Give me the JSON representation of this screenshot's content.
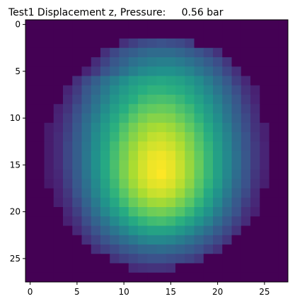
{
  "chart_data": {
    "type": "heatmap",
    "title": "Test1 Displacement z, Pressure:     0.56 bar",
    "colormap": "viridis",
    "rows": 28,
    "cols": 28,
    "xticks": [
      0,
      5,
      10,
      15,
      20,
      25
    ],
    "yticks": [
      0,
      5,
      10,
      15,
      20,
      25
    ],
    "xlim": [
      -0.5,
      27.5
    ],
    "ylim": [
      27.5,
      -0.5
    ],
    "legend": "none",
    "grid": false,
    "values": [
      [
        0.0,
        0.0,
        0.0,
        0.0,
        0.0,
        0.0,
        0.0,
        0.0,
        0.0,
        0.0,
        0.0,
        0.0,
        0.0,
        0.0,
        0.0,
        0.0,
        0.0,
        0.0,
        0.0,
        0.0,
        0.0,
        0.0,
        0.0,
        0.0,
        0.0,
        0.0,
        0.0,
        0.0
      ],
      [
        0.0,
        0.0,
        0.0,
        0.0,
        0.0,
        0.0,
        0.0,
        0.0,
        0.0,
        0.0,
        0.0,
        0.0,
        0.0,
        0.0,
        0.0,
        0.0,
        0.0,
        0.0,
        0.0,
        0.0,
        0.0,
        0.0,
        0.0,
        0.0,
        0.0,
        0.0,
        0.0,
        0.0
      ],
      [
        0.0,
        0.0,
        0.0,
        0.0,
        0.0,
        0.0,
        0.0,
        0.0,
        0.0,
        0.0,
        0.16,
        0.2,
        0.23,
        0.24,
        0.25,
        0.24,
        0.23,
        0.2,
        0.0,
        0.0,
        0.0,
        0.0,
        0.0,
        0.0,
        0.0,
        0.0,
        0.0,
        0.0
      ],
      [
        0.0,
        0.0,
        0.0,
        0.0,
        0.0,
        0.0,
        0.0,
        0.0,
        0.16,
        0.22,
        0.27,
        0.3,
        0.33,
        0.35,
        0.35,
        0.35,
        0.33,
        0.3,
        0.26,
        0.22,
        0.17,
        0.0,
        0.0,
        0.0,
        0.0,
        0.0,
        0.0,
        0.0
      ],
      [
        0.0,
        0.0,
        0.0,
        0.0,
        0.0,
        0.0,
        0.0,
        0.15,
        0.21,
        0.27,
        0.32,
        0.37,
        0.4,
        0.42,
        0.43,
        0.43,
        0.41,
        0.38,
        0.34,
        0.29,
        0.24,
        0.18,
        0.0,
        0.0,
        0.0,
        0.0,
        0.0,
        0.0
      ],
      [
        0.0,
        0.0,
        0.0,
        0.0,
        0.0,
        0.0,
        0.13,
        0.19,
        0.26,
        0.32,
        0.38,
        0.43,
        0.47,
        0.49,
        0.5,
        0.5,
        0.48,
        0.45,
        0.4,
        0.35,
        0.29,
        0.22,
        0.16,
        0.0,
        0.0,
        0.0,
        0.0,
        0.0
      ],
      [
        0.0,
        0.0,
        0.0,
        0.0,
        0.0,
        0.16,
        0.23,
        0.3,
        0.37,
        0.43,
        0.49,
        0.54,
        0.57,
        0.59,
        0.6,
        0.59,
        0.57,
        0.53,
        0.48,
        0.42,
        0.35,
        0.28,
        0.2,
        0.14,
        0.0,
        0.0,
        0.0,
        0.0
      ],
      [
        0.0,
        0.0,
        0.0,
        0.0,
        0.13,
        0.19,
        0.27,
        0.34,
        0.41,
        0.48,
        0.54,
        0.59,
        0.63,
        0.65,
        0.65,
        0.64,
        0.62,
        0.58,
        0.52,
        0.46,
        0.39,
        0.32,
        0.24,
        0.17,
        0.12,
        0.0,
        0.0,
        0.0
      ],
      [
        0.0,
        0.0,
        0.0,
        0.0,
        0.15,
        0.21,
        0.29,
        0.37,
        0.44,
        0.52,
        0.58,
        0.63,
        0.68,
        0.7,
        0.71,
        0.7,
        0.67,
        0.63,
        0.57,
        0.5,
        0.43,
        0.35,
        0.27,
        0.19,
        0.13,
        0.0,
        0.0,
        0.0
      ],
      [
        0.0,
        0.0,
        0.0,
        0.12,
        0.17,
        0.24,
        0.32,
        0.4,
        0.48,
        0.56,
        0.63,
        0.69,
        0.74,
        0.76,
        0.77,
        0.76,
        0.72,
        0.68,
        0.61,
        0.54,
        0.46,
        0.38,
        0.29,
        0.21,
        0.15,
        0.0,
        0.0,
        0.0
      ],
      [
        0.0,
        0.0,
        0.0,
        0.13,
        0.19,
        0.26,
        0.35,
        0.43,
        0.52,
        0.6,
        0.67,
        0.74,
        0.79,
        0.82,
        0.82,
        0.81,
        0.77,
        0.72,
        0.65,
        0.57,
        0.49,
        0.4,
        0.31,
        0.23,
        0.16,
        0.0,
        0.0,
        0.0
      ],
      [
        0.0,
        0.0,
        0.1,
        0.14,
        0.2,
        0.28,
        0.37,
        0.46,
        0.55,
        0.64,
        0.72,
        0.79,
        0.84,
        0.87,
        0.88,
        0.86,
        0.82,
        0.76,
        0.69,
        0.61,
        0.52,
        0.43,
        0.33,
        0.24,
        0.17,
        0.12,
        0.0,
        0.0
      ],
      [
        0.0,
        0.0,
        0.1,
        0.15,
        0.21,
        0.29,
        0.38,
        0.48,
        0.57,
        0.66,
        0.75,
        0.82,
        0.87,
        0.91,
        0.92,
        0.9,
        0.86,
        0.8,
        0.72,
        0.64,
        0.54,
        0.45,
        0.35,
        0.26,
        0.18,
        0.12,
        0.0,
        0.0
      ],
      [
        0.0,
        0.0,
        0.1,
        0.15,
        0.22,
        0.3,
        0.39,
        0.49,
        0.59,
        0.69,
        0.78,
        0.85,
        0.91,
        0.94,
        0.95,
        0.93,
        0.89,
        0.82,
        0.74,
        0.66,
        0.56,
        0.46,
        0.36,
        0.26,
        0.19,
        0.13,
        0.0,
        0.0
      ],
      [
        0.0,
        0.0,
        0.1,
        0.15,
        0.22,
        0.3,
        0.4,
        0.5,
        0.6,
        0.7,
        0.79,
        0.87,
        0.93,
        0.97,
        0.98,
        0.96,
        0.91,
        0.84,
        0.76,
        0.67,
        0.57,
        0.47,
        0.37,
        0.27,
        0.19,
        0.13,
        0.0,
        0.0
      ],
      [
        0.0,
        0.0,
        0.1,
        0.15,
        0.22,
        0.3,
        0.4,
        0.5,
        0.61,
        0.71,
        0.8,
        0.88,
        0.94,
        0.98,
        0.99,
        0.97,
        0.92,
        0.85,
        0.77,
        0.67,
        0.57,
        0.47,
        0.37,
        0.27,
        0.19,
        0.13,
        0.0,
        0.0
      ],
      [
        0.0,
        0.0,
        0.1,
        0.14,
        0.21,
        0.29,
        0.39,
        0.49,
        0.6,
        0.7,
        0.8,
        0.88,
        0.94,
        0.98,
        1.0,
        0.97,
        0.92,
        0.85,
        0.76,
        0.67,
        0.57,
        0.46,
        0.36,
        0.26,
        0.18,
        0.12,
        0.0,
        0.0
      ],
      [
        0.0,
        0.0,
        0.09,
        0.13,
        0.2,
        0.28,
        0.37,
        0.47,
        0.58,
        0.68,
        0.78,
        0.86,
        0.92,
        0.96,
        0.97,
        0.95,
        0.9,
        0.83,
        0.74,
        0.65,
        0.55,
        0.44,
        0.34,
        0.25,
        0.17,
        0.11,
        0.0,
        0.0
      ],
      [
        0.0,
        0.0,
        0.0,
        0.12,
        0.18,
        0.26,
        0.35,
        0.45,
        0.55,
        0.65,
        0.74,
        0.82,
        0.88,
        0.92,
        0.93,
        0.91,
        0.86,
        0.79,
        0.71,
        0.61,
        0.51,
        0.41,
        0.31,
        0.23,
        0.15,
        0.0,
        0.0,
        0.0
      ],
      [
        0.0,
        0.0,
        0.0,
        0.11,
        0.16,
        0.23,
        0.32,
        0.41,
        0.51,
        0.6,
        0.69,
        0.77,
        0.82,
        0.86,
        0.87,
        0.85,
        0.8,
        0.74,
        0.66,
        0.57,
        0.47,
        0.37,
        0.28,
        0.2,
        0.14,
        0.0,
        0.0,
        0.0
      ],
      [
        0.0,
        0.0,
        0.0,
        0.0,
        0.14,
        0.2,
        0.28,
        0.37,
        0.46,
        0.54,
        0.62,
        0.7,
        0.75,
        0.78,
        0.79,
        0.77,
        0.73,
        0.67,
        0.59,
        0.51,
        0.42,
        0.33,
        0.25,
        0.17,
        0.12,
        0.0,
        0.0,
        0.0
      ],
      [
        0.0,
        0.0,
        0.0,
        0.0,
        0.12,
        0.17,
        0.24,
        0.32,
        0.39,
        0.47,
        0.54,
        0.61,
        0.66,
        0.69,
        0.7,
        0.68,
        0.64,
        0.58,
        0.51,
        0.44,
        0.36,
        0.28,
        0.21,
        0.15,
        0.0,
        0.0,
        0.0,
        0.0
      ],
      [
        0.0,
        0.0,
        0.0,
        0.0,
        0.0,
        0.14,
        0.2,
        0.26,
        0.33,
        0.39,
        0.45,
        0.51,
        0.55,
        0.58,
        0.58,
        0.57,
        0.53,
        0.48,
        0.42,
        0.36,
        0.29,
        0.23,
        0.17,
        0.0,
        0.0,
        0.0,
        0.0,
        0.0
      ],
      [
        0.0,
        0.0,
        0.0,
        0.0,
        0.0,
        0.0,
        0.16,
        0.21,
        0.26,
        0.31,
        0.36,
        0.4,
        0.44,
        0.46,
        0.46,
        0.45,
        0.42,
        0.38,
        0.33,
        0.28,
        0.23,
        0.18,
        0.0,
        0.0,
        0.0,
        0.0,
        0.0,
        0.0
      ],
      [
        0.0,
        0.0,
        0.0,
        0.0,
        0.0,
        0.0,
        0.0,
        0.16,
        0.2,
        0.23,
        0.27,
        0.3,
        0.33,
        0.34,
        0.35,
        0.34,
        0.32,
        0.29,
        0.25,
        0.21,
        0.17,
        0.0,
        0.0,
        0.0,
        0.0,
        0.0,
        0.0,
        0.0
      ],
      [
        0.0,
        0.0,
        0.0,
        0.0,
        0.0,
        0.0,
        0.0,
        0.0,
        0.0,
        0.17,
        0.2,
        0.22,
        0.24,
        0.25,
        0.25,
        0.24,
        0.23,
        0.21,
        0.18,
        0.0,
        0.0,
        0.0,
        0.0,
        0.0,
        0.0,
        0.0,
        0.0,
        0.0
      ],
      [
        0.0,
        0.0,
        0.0,
        0.0,
        0.0,
        0.0,
        0.0,
        0.0,
        0.0,
        0.0,
        0.0,
        0.15,
        0.16,
        0.17,
        0.17,
        0.16,
        0.0,
        0.0,
        0.0,
        0.0,
        0.0,
        0.0,
        0.0,
        0.0,
        0.0,
        0.0,
        0.0,
        0.0
      ],
      [
        0.0,
        0.0,
        0.0,
        0.0,
        0.0,
        0.0,
        0.0,
        0.0,
        0.0,
        0.0,
        0.0,
        0.0,
        0.0,
        0.0,
        0.0,
        0.0,
        0.0,
        0.0,
        0.0,
        0.0,
        0.0,
        0.0,
        0.0,
        0.0,
        0.0,
        0.0,
        0.0,
        0.0
      ]
    ]
  }
}
